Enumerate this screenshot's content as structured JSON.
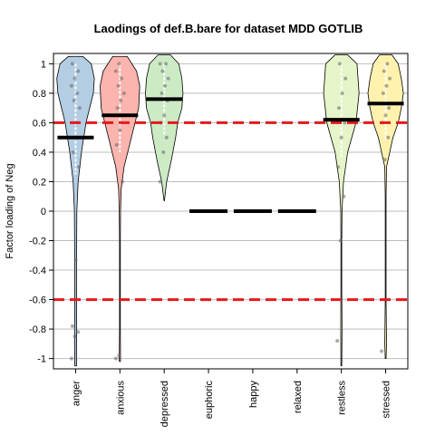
{
  "chart_data": {
    "type": "violin",
    "title": "Laodings of def.B.bare for dataset MDD GOTLIB",
    "xlabel": "",
    "ylabel": "Factor loading of Neg",
    "ylim": [
      -1.07,
      1.07
    ],
    "yticks": [
      -1,
      -0.8,
      -0.6,
      -0.4,
      -0.2,
      0,
      0.2,
      0.4,
      0.6,
      0.8,
      1
    ],
    "ytick_labels": [
      "-1",
      "-0.8",
      "-0.6",
      "-0.4",
      "-0.2",
      "0",
      "0.2",
      "0.4",
      "0.6",
      "0.8",
      "1"
    ],
    "grid": true,
    "reference_lines": [
      0.6,
      -0.6
    ],
    "reference_line_color": "#e41a1c",
    "categories": [
      "anger",
      "anxious",
      "depressed",
      "euphoric",
      "happy",
      "relaxed",
      "restless",
      "stressed"
    ],
    "medians": [
      0.5,
      0.65,
      0.76,
      0,
      0,
      0,
      0.62,
      0.73
    ],
    "colors": [
      "#b3cde3",
      "#fbb4ae",
      "#ccebc5",
      null,
      null,
      null,
      "#e6f5c9",
      "#fff2ae"
    ],
    "violins": [
      {
        "y": [
          -1.05,
          -0.8,
          -0.5,
          -0.2,
          0.0,
          0.2,
          0.4,
          0.6,
          0.8,
          0.9,
          1.0,
          1.05
        ],
        "w": [
          0.04,
          0.05,
          0.04,
          0.05,
          0.06,
          0.12,
          0.28,
          0.5,
          0.85,
          0.9,
          0.75,
          0.35
        ]
      },
      {
        "y": [
          -1.02,
          -0.8,
          -0.5,
          -0.2,
          0.0,
          0.15,
          0.3,
          0.5,
          0.7,
          0.85,
          0.95,
          1.05
        ],
        "w": [
          0.03,
          0.02,
          0.02,
          0.02,
          0.03,
          0.06,
          0.2,
          0.55,
          0.9,
          0.95,
          0.8,
          0.35
        ]
      },
      {
        "y": [
          0.07,
          0.2,
          0.35,
          0.5,
          0.6,
          0.7,
          0.8,
          0.9,
          1.0,
          1.06
        ],
        "w": [
          0.01,
          0.12,
          0.35,
          0.55,
          0.65,
          0.85,
          0.9,
          0.85,
          0.7,
          0.3
        ]
      },
      null,
      null,
      null,
      {
        "y": [
          -1.05,
          -0.8,
          -0.5,
          -0.2,
          0.0,
          0.2,
          0.4,
          0.6,
          0.8,
          1.0,
          1.06
        ],
        "w": [
          0.02,
          0.03,
          0.02,
          0.02,
          0.03,
          0.1,
          0.3,
          0.7,
          0.85,
          0.75,
          0.3
        ]
      },
      {
        "y": [
          -1.0,
          -0.9,
          -0.6,
          -0.2,
          0.1,
          0.3,
          0.5,
          0.6,
          0.7,
          0.8,
          0.9,
          1.0,
          1.06
        ],
        "w": [
          0.02,
          0.04,
          0.02,
          0.02,
          0.02,
          0.04,
          0.35,
          0.6,
          0.75,
          0.85,
          0.75,
          0.6,
          0.3
        ]
      }
    ],
    "points": [
      [
        -1.0,
        -0.85,
        -0.82,
        -0.78,
        -0.33,
        0.3,
        0.4,
        0.6,
        0.7,
        0.75,
        0.8,
        0.85,
        0.9,
        0.95,
        1.0
      ],
      [
        -1.0,
        -0.98,
        0.2,
        0.45,
        0.55,
        0.65,
        0.7,
        0.75,
        0.8,
        0.85,
        0.9,
        0.95,
        1.0
      ],
      [
        0.2,
        0.4,
        0.5,
        0.6,
        0.65,
        0.75,
        0.8,
        0.85,
        0.9,
        0.95,
        1.0,
        1.0
      ],
      [],
      [],
      [],
      [
        -0.88,
        -0.2,
        0.1,
        0.3,
        0.5,
        0.6,
        0.7,
        0.8,
        0.9,
        1.0
      ],
      [
        -0.95,
        0.35,
        0.5,
        0.6,
        0.65,
        0.7,
        0.8,
        0.85,
        0.9,
        0.95,
        1.0
      ]
    ]
  }
}
